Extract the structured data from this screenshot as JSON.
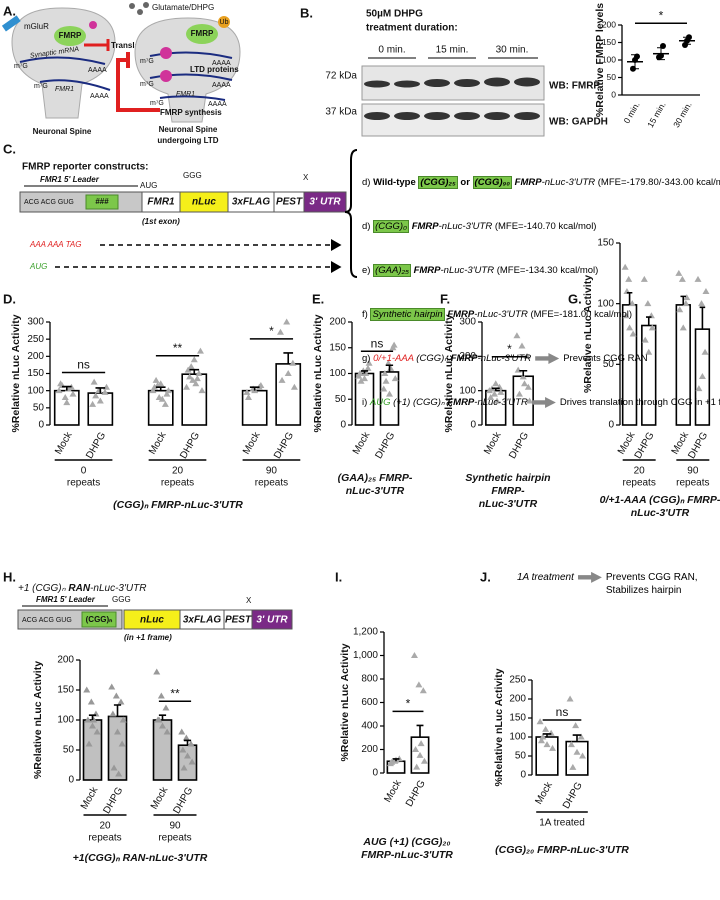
{
  "panel_a": {
    "letter": "A.",
    "mglur": "mGluR",
    "fmrp": [
      "FMRP",
      "FMRP"
    ],
    "mrna": "Synaptic mRNA",
    "translation": "Translation",
    "cap": [
      "m⁷G",
      "m⁷G",
      "m⁷G",
      "m⁷G",
      "m⁷G"
    ],
    "polya": [
      "AAAA",
      "AAAA",
      "AAAA",
      "AAAA",
      "AAAA"
    ],
    "fmr1": [
      "FMR1",
      "FMR1"
    ],
    "glutamate": "Glutamate/DHPG",
    "ub": "Ub",
    "ltd": "LTD proteins",
    "synthesis": "FMRP synthesis",
    "spine": [
      "Neuronal Spine",
      "Neuronal Spine",
      "undergoing LTD"
    ]
  },
  "panel_b": {
    "letter": "B.",
    "treatment": "50µM DHPG",
    "duration": "treatment duration:",
    "times": [
      "0 min.",
      "15 min.",
      "30 min."
    ],
    "mw": [
      "72 kDa",
      "37 kDa"
    ],
    "wb": [
      "WB: FMRP",
      "WB: GAPDH"
    ]
  },
  "panel_c": {
    "letter": "C.",
    "title": "FMRP reporter constructs:",
    "construct": {
      "leader": "FMR1 5' Leader",
      "aug": "AUG",
      "ggg": "GGG",
      "stop": "X",
      "acg": "ACG ACG GUG",
      "repeat": "###",
      "exon": "FMR1",
      "exon_note": "(1st exon)",
      "nluc": "nLuc",
      "flag": "3xFLAG",
      "pest": "PEST",
      "utr": "3' UTR"
    },
    "mutants": [
      "AAA AAA TAG",
      "AUG"
    ],
    "items": [
      [
        "d) ",
        "Wild-type ",
        "(CGG)₂₅",
        " or ",
        "(CGG)₉₀",
        " FMRP",
        "-nLuc-3'UTR",
        " (MFE=-179.80/-343.00 kcal/mol)"
      ],
      [
        "d) ",
        "(CGG)₀",
        " FMRP",
        "-nLuc-3'UTR",
        " (MFE=-140.70 kcal/mol)"
      ],
      [
        "e) ",
        "(GAA)₂₅",
        " FMRP",
        "-nLuc-3'UTR",
        " (MFE=-134.30 kcal/mol)"
      ],
      [
        "f) ",
        "Synthetic hairpin",
        " FMRP",
        "-nLuc-3'UTR",
        " (MFE=-181.00 kcal/mol)"
      ],
      [
        "g) ",
        "0/+1-AAA",
        " (CGG)ₙ",
        " FMRP",
        "-nLuc-3'UTR",
        "Prevents CGG RAN"
      ],
      [
        "i) ",
        "AUG",
        " (+1) (CGG)ₙ",
        " FMRP",
        "-nLuc-3'UTR",
        "Drives translation through CGG in +1 frame"
      ]
    ]
  },
  "panel_h": {
    "title": [
      "+1 (CGG)ₙ ",
      "RAN",
      "-nLuc-3'UTR"
    ],
    "construct": {
      "leader": "FMR1 5' Leader",
      "ggg": "GGG",
      "stop": "X",
      "acg": "ACG ACG GUG",
      "repeat": "(CGG)ₙ",
      "nluc": "nLuc",
      "frame": "(in +1 frame)",
      "flag": "3xFLAG",
      "pest": "PEST",
      "utr": "3' UTR"
    }
  },
  "panel_j": {
    "treatment": "1A treatment",
    "effect": [
      "Prevents CGG RAN,",
      "Stabilizes hairpin"
    ]
  },
  "chart_data": [
    {
      "type": "dot",
      "ylabel": "%Relative FMRP levels",
      "categories": [
        "0 min.",
        "15 min.",
        "30 min."
      ],
      "values": [
        95,
        118,
        155
      ],
      "errors": [
        20,
        17,
        10
      ],
      "points": [
        [
          75,
          100,
          110
        ],
        [
          108,
          112,
          140
        ],
        [
          143,
          155,
          165
        ]
      ],
      "significance": [
        "*"
      ],
      "ylim": [
        0,
        200
      ],
      "yticks": [
        0,
        50,
        100,
        150,
        200
      ],
      "color": "#000000"
    },
    {
      "type": "bar",
      "letter": "D.",
      "ylabel": "%Relative nLuc Activity",
      "categories": [
        "Mock",
        "DHPG",
        "Mock",
        "DHPG",
        "Mock",
        "DHPG"
      ],
      "groups": [
        [
          "0",
          "repeats"
        ],
        [
          "20",
          "repeats"
        ],
        [
          "90",
          "repeats"
        ]
      ],
      "values": [
        100,
        93,
        100,
        148,
        100,
        178
      ],
      "errors": [
        12,
        15,
        10,
        13,
        10,
        32
      ],
      "points": [
        [
          100,
          80,
          110,
          120,
          65,
          90,
          115,
          105
        ],
        [
          60,
          100,
          95,
          125,
          70,
          110,
          85
        ],
        [
          100,
          80,
          60,
          110,
          120,
          90,
          130,
          75,
          100,
          115
        ],
        [
          110,
          130,
          150,
          160,
          190,
          215,
          140,
          120,
          100,
          170,
          135
        ],
        [
          95,
          105,
          110,
          80,
          100,
          115
        ],
        [
          270,
          300,
          180,
          130,
          150,
          110
        ]
      ],
      "significance": [
        "ns",
        "**",
        "*"
      ],
      "ylim": [
        0,
        300
      ],
      "yticks": [
        0,
        50,
        100,
        150,
        200,
        250,
        300
      ],
      "x_label": [
        [
          "(CGG)ₙ ",
          "FMRP",
          "-nLuc-3'UTR"
        ]
      ],
      "color": "#ffffff",
      "point_color": "#aaaaaa"
    },
    {
      "type": "bar",
      "letter": "E.",
      "ylabel": "%Relative nLuc Activity",
      "categories": [
        "Mock",
        "DHPG"
      ],
      "values": [
        100,
        103
      ],
      "errors": [
        5,
        13
      ],
      "points": [
        [
          95,
          105,
          110,
          100,
          90,
          120,
          85,
          100
        ],
        [
          70,
          120,
          150,
          100,
          60,
          155,
          85,
          110,
          90
        ]
      ],
      "significance": [
        "ns"
      ],
      "ylim": [
        0,
        200
      ],
      "yticks": [
        0,
        50,
        100,
        150,
        200
      ],
      "x_label": [
        [
          "(GAA)₂₅ ",
          "FMRP",
          "-"
        ],
        [
          "nLuc-3'UTR"
        ]
      ],
      "color": "#ffffff",
      "point_color": "#aaaaaa"
    },
    {
      "type": "bar",
      "letter": "F.",
      "ylabel": "%Relative nLuc Activity",
      "categories": [
        "Mock",
        "DHPG"
      ],
      "values": [
        100,
        142
      ],
      "errors": [
        7,
        16
      ],
      "points": [
        [
          100,
          90,
          110,
          80,
          120,
          95,
          105,
          70
        ],
        [
          260,
          230,
          200,
          160,
          140,
          110,
          90,
          120,
          70
        ]
      ],
      "significance": [
        "*"
      ],
      "ylim": [
        0,
        300
      ],
      "yticks": [
        0,
        100,
        200,
        300
      ],
      "x_label": [
        [
          "Synthetic hairpin"
        ],
        [
          "FMRP",
          "-"
        ],
        [
          "nLuc-3'UTR"
        ]
      ],
      "color": "#ffffff",
      "point_color": "#aaaaaa"
    },
    {
      "type": "bar",
      "letter": "G.",
      "ylabel": "%Relative nLuc Activity",
      "categories": [
        "Mock",
        "DHPG",
        "Mock",
        "DHPG"
      ],
      "groups": [
        [
          "20",
          "repeats"
        ],
        [
          "90",
          "repeats"
        ]
      ],
      "values": [
        99,
        82,
        99,
        79
      ],
      "errors": [
        10,
        7,
        7,
        18
      ],
      "points": [
        [
          130,
          120,
          100,
          90,
          80,
          75,
          110
        ],
        [
          120,
          100,
          90,
          70,
          60,
          80
        ],
        [
          125,
          120,
          100,
          95,
          80,
          105
        ],
        [
          120,
          100,
          60,
          30,
          40,
          110
        ]
      ],
      "ylim": [
        0,
        150
      ],
      "yticks": [
        0,
        50,
        100,
        150
      ],
      "x_label": [
        [
          "0/+1-AAA (CGG)ₙ ",
          "FMRP",
          "-"
        ],
        [
          "nLuc-3'UTR"
        ]
      ],
      "color": "#ffffff",
      "point_color": "#aaaaaa"
    },
    {
      "type": "bar",
      "letter": "H.",
      "ylabel": "%Relative nLuc Activity",
      "categories": [
        "Mock",
        "DHPG",
        "Mock",
        "DHPG"
      ],
      "groups": [
        [
          "20",
          "repeats"
        ],
        [
          "90",
          "repeats"
        ]
      ],
      "values": [
        100,
        106,
        100,
        58
      ],
      "errors": [
        8,
        19,
        8,
        8
      ],
      "points": [
        [
          150,
          130,
          110,
          100,
          90,
          80,
          60,
          100
        ],
        [
          155,
          140,
          130,
          110,
          80,
          60,
          20,
          10,
          100
        ],
        [
          180,
          140,
          120,
          100,
          90,
          80,
          100
        ],
        [
          80,
          70,
          60,
          50,
          40,
          30,
          20
        ]
      ],
      "significance": [
        null,
        "**"
      ],
      "ylim": [
        0,
        200
      ],
      "yticks": [
        0,
        50,
        100,
        150,
        200
      ],
      "x_label": [
        [
          "+1(CGG)ₙ ",
          "RAN",
          "-nLuc-3'UTR"
        ]
      ],
      "color": "#c0c0c0",
      "point_color": "#999999"
    },
    {
      "type": "bar",
      "letter": "I.",
      "ylabel": "%Relative nLuc Activity",
      "categories": [
        "Mock",
        "DHPG"
      ],
      "values": [
        100,
        305
      ],
      "errors": [
        20,
        100
      ],
      "points": [
        [
          80,
          100,
          120,
          90,
          110
        ],
        [
          1000,
          750,
          700,
          200,
          150,
          100,
          50,
          250
        ]
      ],
      "significance": [
        "*"
      ],
      "ylim": [
        0,
        1200
      ],
      "yticks": [
        0,
        200,
        400,
        600,
        800,
        {
          "value": 1000,
          "label": "1,000"
        },
        {
          "value": 1200,
          "label": "1,200"
        }
      ],
      "x_label": [
        [
          "AUG (+1) (CGG)₂₀"
        ],
        [
          "FMRP",
          "-nLuc-3'UTR"
        ]
      ],
      "color": "#ffffff",
      "point_color": "#aaaaaa"
    },
    {
      "type": "bar",
      "letter": "J.",
      "ylabel": "%Relative nLuc Activity",
      "categories": [
        "Mock",
        "DHPG"
      ],
      "groups": [
        [
          "1A treated"
        ]
      ],
      "values": [
        100,
        88
      ],
      "errors": [
        8,
        17
      ],
      "points": [
        [
          140,
          120,
          110,
          90,
          80,
          70,
          100
        ],
        [
          200,
          130,
          100,
          80,
          60,
          50,
          20
        ]
      ],
      "significance": [
        "ns"
      ],
      "ylim": [
        0,
        250
      ],
      "yticks": [
        0,
        50,
        100,
        150,
        200,
        250
      ],
      "x_label": [
        [
          "(CGG)₂₀ ",
          "FMRP",
          "-nLuc-3'UTR"
        ]
      ],
      "color": "#ffffff",
      "point_color": "#aaaaaa"
    }
  ]
}
